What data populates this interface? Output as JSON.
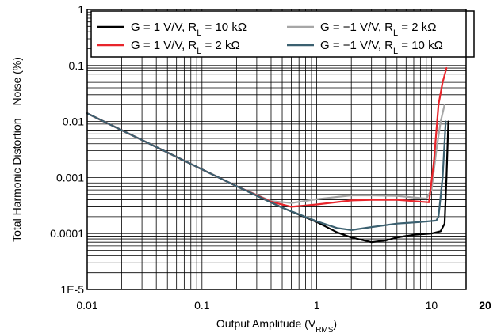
{
  "chart_data": {
    "type": "line",
    "xlabel": "Output Amplitude (V",
    "xlabel_sub": "RMS",
    "xlabel_tail": ")",
    "ylabel": "Total Harmonic Distortion  + Noise (%)",
    "x_scale": "log",
    "y_scale": "log",
    "xlim": [
      0.01,
      20
    ],
    "ylim": [
      1e-05,
      1
    ],
    "grid": true,
    "legend_position": "top",
    "x_ticks": [
      {
        "value": 0.01,
        "label": "0.01"
      },
      {
        "value": 0.1,
        "label": "0.1"
      },
      {
        "value": 1,
        "label": "1"
      },
      {
        "value": 10,
        "label": "10"
      },
      {
        "value": 20,
        "label": "20"
      }
    ],
    "y_ticks": [
      {
        "value": 1,
        "label": "1"
      },
      {
        "value": 0.1,
        "label": "0.1"
      },
      {
        "value": 0.01,
        "label": "0.01"
      },
      {
        "value": 0.001,
        "label": "0.001"
      },
      {
        "value": 0.0001,
        "label": "0.0001"
      },
      {
        "value": 1e-05,
        "label": "1E-5"
      }
    ],
    "series": [
      {
        "name": "G = 1 V/V, R_L = 10 kΩ",
        "label": {
          "pre": "G = 1 V/V, R",
          "sub": "L",
          "post": " = 10 kΩ"
        },
        "color": "#000000",
        "x": [
          0.01,
          0.02,
          0.05,
          0.1,
          0.2,
          0.5,
          1,
          1.5,
          2,
          3,
          4,
          5,
          7,
          10,
          12,
          13,
          13.5,
          14
        ],
        "y": [
          0.014,
          0.007,
          0.0028,
          0.0014,
          0.0007,
          0.00029,
          0.00016,
          0.000105,
          8.5e-05,
          7e-05,
          7.5e-05,
          8.5e-05,
          9.5e-05,
          0.0001,
          0.00011,
          0.00015,
          0.001,
          0.01
        ]
      },
      {
        "name": "G = −1 V/V, R_L = 2 kΩ",
        "label": {
          "pre": "G = −1 V/V, R",
          "sub": "L",
          "post": " = 2 kΩ"
        },
        "color": "#a6a6a6",
        "x": [
          0.01,
          0.02,
          0.05,
          0.1,
          0.2,
          0.4,
          0.6,
          1,
          2,
          3,
          5,
          9,
          10,
          11,
          12,
          13
        ],
        "y": [
          0.014,
          0.007,
          0.0028,
          0.0014,
          0.0007,
          0.00038,
          0.00035,
          0.00041,
          0.00048,
          0.00048,
          0.00047,
          0.00042,
          0.0006,
          0.003,
          0.01,
          0.02
        ]
      },
      {
        "name": "G = 1 V/V, R_L = 2 kΩ",
        "label": {
          "pre": "G = 1 V/V, R",
          "sub": "L",
          "post": " = 2 kΩ"
        },
        "color": "#e8252b",
        "x": [
          0.01,
          0.02,
          0.05,
          0.1,
          0.2,
          0.4,
          0.6,
          1,
          2,
          3,
          5,
          9.5,
          10.5,
          11.5,
          12.5,
          13.5
        ],
        "y": [
          0.014,
          0.007,
          0.0028,
          0.0014,
          0.0007,
          0.00037,
          0.0003,
          0.00033,
          0.00039,
          0.0004,
          0.0004,
          0.00036,
          0.002,
          0.02,
          0.05,
          0.09
        ]
      },
      {
        "name": "G = −1 V/V, R_L = 10 kΩ",
        "label": {
          "pre": "G = −1 V/V, R",
          "sub": "L",
          "post": " = 10 kΩ"
        },
        "color": "#3b6070",
        "x": [
          0.01,
          0.02,
          0.05,
          0.1,
          0.2,
          0.5,
          1,
          1.5,
          2,
          3,
          5,
          8,
          11,
          11.5,
          12.5,
          13.3
        ],
        "y": [
          0.014,
          0.007,
          0.0028,
          0.0014,
          0.0007,
          0.00029,
          0.000165,
          0.000125,
          0.000115,
          0.00013,
          0.00015,
          0.00016,
          0.00017,
          0.0002,
          0.001,
          0.01
        ]
      }
    ]
  }
}
